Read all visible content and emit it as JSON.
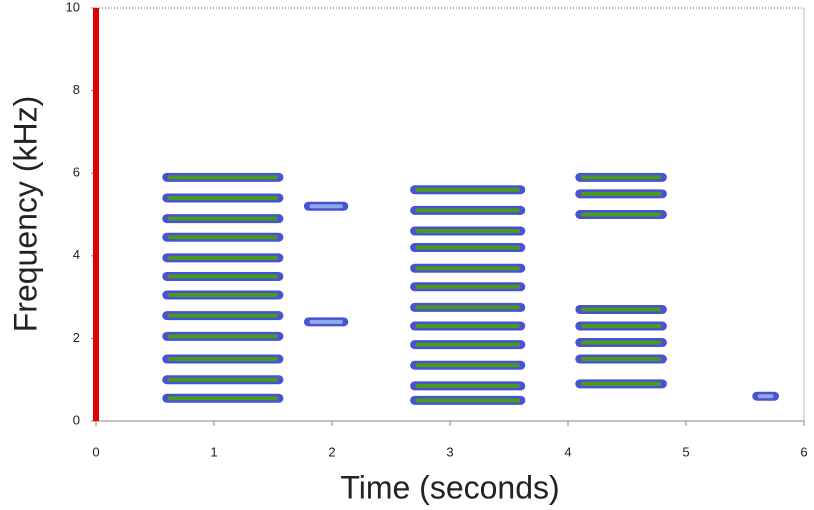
{
  "chart_data": {
    "type": "spectrogram",
    "x_label": "Time (seconds)",
    "y_label": "Frequency (kHz)",
    "xlim": [
      0,
      6
    ],
    "ylim": [
      0,
      10
    ],
    "xticks": [
      0,
      1,
      2,
      3,
      4,
      5,
      6
    ],
    "yticks": [
      0,
      2,
      4,
      6,
      8,
      10
    ],
    "cursor": 0,
    "cursor_color": "#e00000",
    "edge_color": "#2a35c8",
    "syllables": [
      {
        "start": 0.6,
        "end": 1.55,
        "color": "#4a9a1e",
        "harmonics": [
          0.55,
          1.0,
          1.5,
          2.05,
          2.55,
          3.05,
          3.5,
          3.95,
          4.45,
          4.9,
          5.4,
          5.9
        ]
      },
      {
        "start": 1.8,
        "end": 2.1,
        "color": "#8fa8ea",
        "harmonics": [
          2.4,
          5.2
        ]
      },
      {
        "start": 2.7,
        "end": 3.6,
        "color": "#4a9a1e",
        "harmonics": [
          0.5,
          0.85,
          1.35,
          1.85,
          2.3,
          2.75,
          3.25,
          3.7,
          4.2,
          4.6,
          5.1,
          5.6
        ]
      },
      {
        "start": 4.1,
        "end": 4.8,
        "color": "#4a9a1e",
        "harmonics": [
          0.9,
          1.5,
          1.9,
          2.3,
          2.7,
          5.0,
          5.5,
          5.9
        ]
      },
      {
        "start": 5.6,
        "end": 5.75,
        "color": "#8fa8ea",
        "harmonics": [
          0.6
        ]
      }
    ]
  }
}
